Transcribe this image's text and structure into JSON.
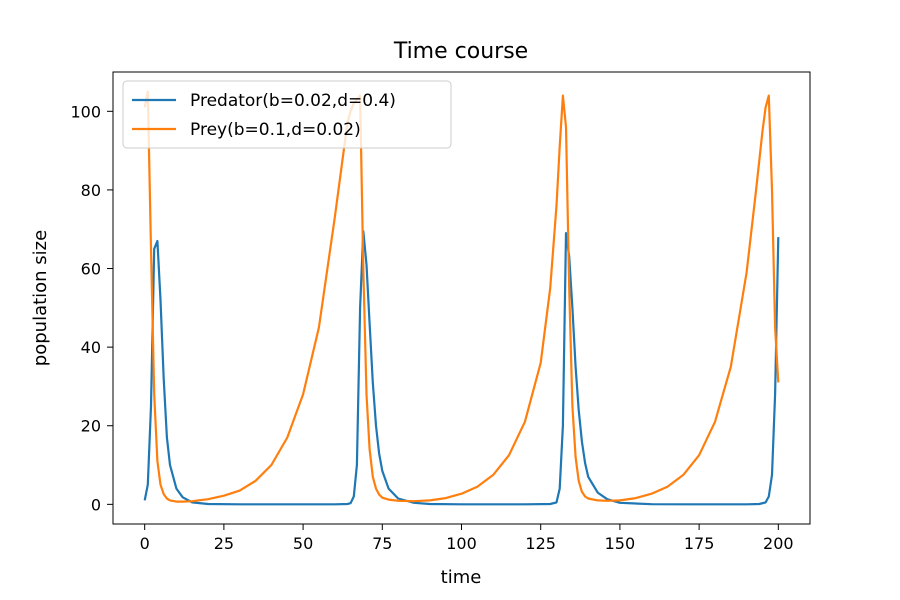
{
  "chart_data": {
    "type": "line",
    "title": "Time course",
    "xlabel": "time",
    "ylabel": "population size",
    "xlim": [
      -10,
      210
    ],
    "ylim": [
      -5,
      110
    ],
    "xticks": [
      0,
      25,
      50,
      75,
      100,
      125,
      150,
      175,
      200
    ],
    "yticks": [
      0,
      20,
      40,
      60,
      80,
      100
    ],
    "grid": false,
    "legend_position": "top-left",
    "series": [
      {
        "name": "Predator(b=0.02,d=0.4)",
        "color": "#1f77b4",
        "x": [
          0,
          1,
          2,
          3,
          4,
          5,
          6,
          7,
          8,
          10,
          12,
          15,
          20,
          30,
          40,
          50,
          60,
          64,
          65,
          66,
          67,
          68,
          69,
          70,
          71,
          72,
          73,
          74,
          75,
          77,
          80,
          85,
          90,
          100,
          110,
          120,
          128,
          130,
          131,
          132,
          133,
          134,
          135,
          136,
          137,
          138,
          139,
          140,
          143,
          146,
          150,
          160,
          170,
          180,
          190,
          194,
          196,
          197,
          198,
          199,
          200
        ],
        "y": [
          1,
          5,
          25,
          65,
          67,
          52,
          32,
          17,
          10,
          4,
          1.8,
          0.5,
          0.1,
          0,
          0,
          0,
          0,
          0.1,
          0.3,
          2,
          10,
          50,
          69.5,
          61,
          46,
          31,
          20,
          13,
          8.5,
          4,
          1.5,
          0.4,
          0.1,
          0,
          0,
          0,
          0.1,
          0.5,
          4,
          20,
          69,
          63,
          50,
          35,
          24,
          16,
          10.5,
          7,
          3,
          1.3,
          0.4,
          0.05,
          0,
          0,
          0,
          0.1,
          0.5,
          2,
          7.5,
          28,
          68
        ]
      },
      {
        "name": "Prey(b=0.1,d=0.02)",
        "color": "#ff7f0e",
        "x": [
          0,
          1,
          2,
          3,
          4,
          5,
          6,
          7,
          8,
          10,
          12,
          15,
          20,
          25,
          30,
          35,
          40,
          45,
          50,
          55,
          60,
          62,
          64,
          65,
          66,
          67,
          68,
          69,
          70,
          71,
          72,
          73,
          74,
          75,
          77,
          80,
          85,
          90,
          95,
          100,
          105,
          110,
          115,
          120,
          125,
          128,
          130,
          131,
          132,
          133,
          134,
          135,
          136,
          137,
          138,
          139,
          140,
          143,
          146,
          150,
          155,
          160,
          165,
          170,
          175,
          180,
          185,
          190,
          193,
          195,
          196,
          197,
          198,
          199,
          200
        ],
        "y": [
          101,
          105,
          65,
          28,
          11,
          5,
          2.6,
          1.5,
          1.0,
          0.7,
          0.7,
          0.8,
          1.3,
          2.2,
          3.5,
          6,
          10,
          17,
          28,
          45,
          73,
          85,
          97,
          100,
          102,
          103,
          104,
          60,
          28,
          14,
          7,
          4,
          2.5,
          1.7,
          1.2,
          0.9,
          0.8,
          1.0,
          1.6,
          2.7,
          4.5,
          7.5,
          12.5,
          21,
          36,
          55,
          76,
          91,
          104,
          96,
          55,
          25,
          12,
          6,
          3.2,
          2,
          1.5,
          1.0,
          0.9,
          1.0,
          1.6,
          2.7,
          4.5,
          7.5,
          12.5,
          21,
          35,
          59,
          80,
          95,
          101,
          104,
          80,
          45,
          31
        ]
      }
    ]
  }
}
